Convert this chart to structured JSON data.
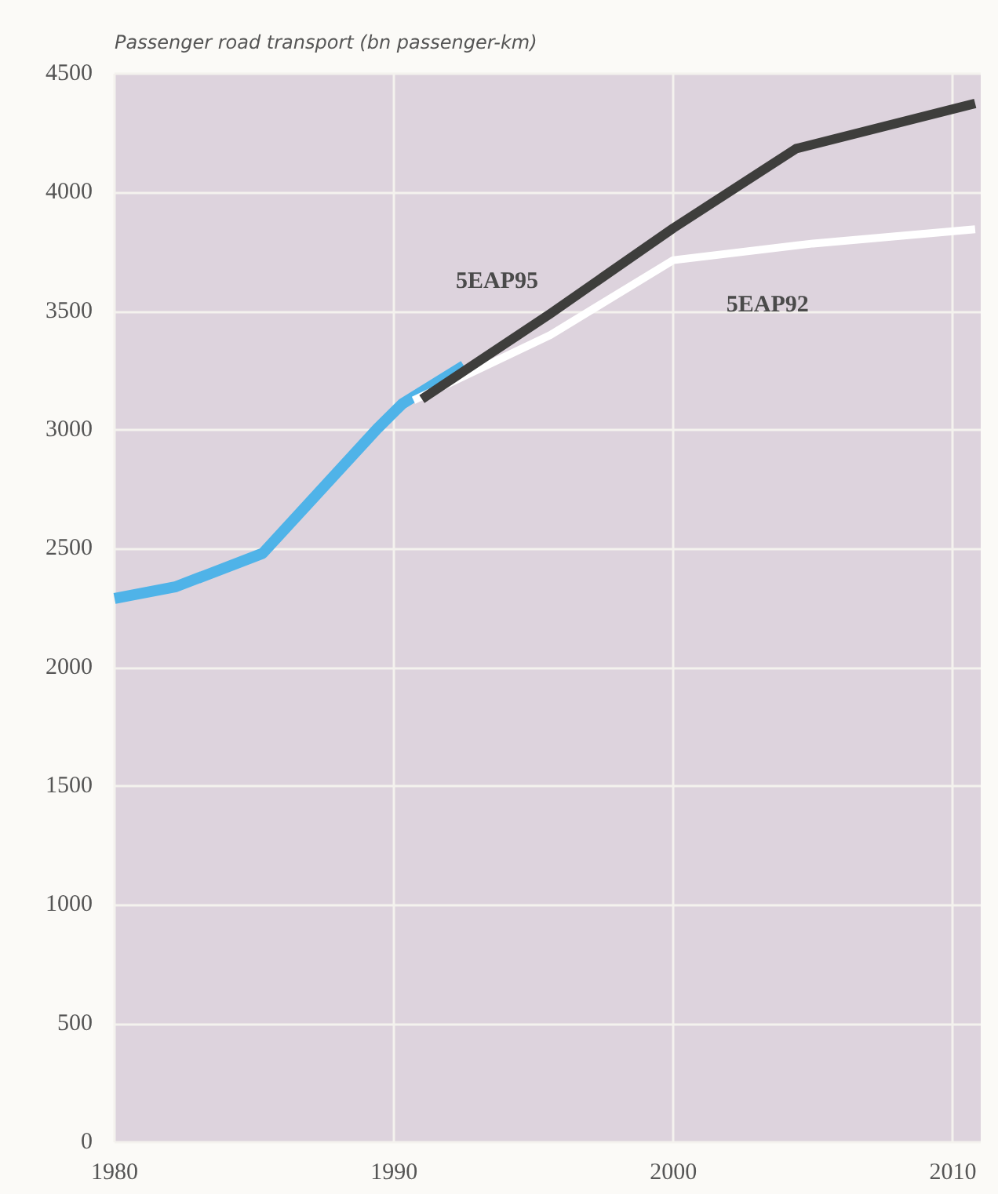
{
  "chart_data": {
    "type": "line",
    "ylabel": "Passenger road transport (bn passenger-km)",
    "xlim": [
      1980,
      2011
    ],
    "xticks": [
      1980,
      1990,
      2000,
      2010
    ],
    "ylim": [
      0,
      4500
    ],
    "yticks": [
      0,
      500,
      1000,
      1500,
      2000,
      2500,
      3000,
      3500,
      4000,
      4500
    ],
    "grid": true,
    "legend": false,
    "marker": "none",
    "line_style": "solid",
    "series": [
      {
        "color": "#4fb3e8",
        "x": [
          1980,
          1982.2,
          1985.3,
          1989.4,
          1990.3,
          1992.5
        ],
        "values": [
          2290,
          2340,
          2480,
          3005,
          3110,
          3270
        ]
      },
      {
        "name": "5EAP92",
        "color": "#ffffff",
        "x": [
          1990.7,
          1995.6,
          2000,
          2005,
          2010.8
        ],
        "values": [
          3125,
          3400,
          3715,
          3785,
          3845
        ]
      },
      {
        "name": "5EAP95",
        "color": "#3e3e3c",
        "x": [
          1991,
          1995.6,
          2000,
          2004.4,
          2010.8
        ],
        "values": [
          3130,
          3490,
          3850,
          4185,
          4375
        ]
      }
    ]
  }
}
